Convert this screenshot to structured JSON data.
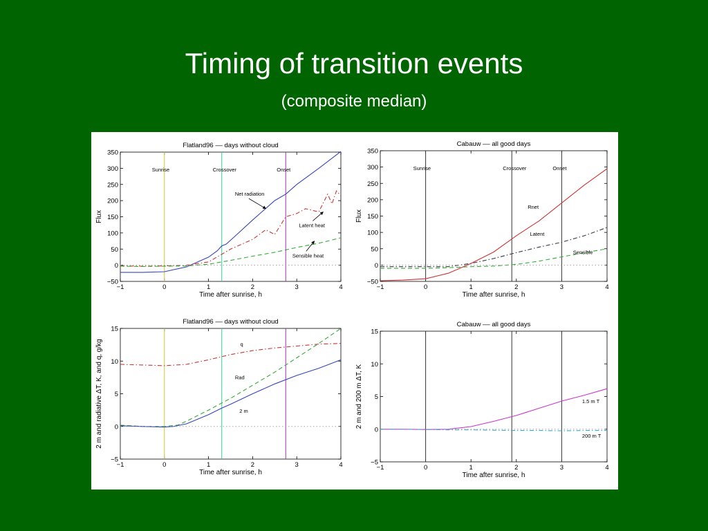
{
  "slide": {
    "title": "Timing of transition events",
    "subtitle": "(composite median)"
  },
  "chart_data": [
    {
      "type": "line",
      "title": "Flatland96 –– days without cloud",
      "xlabel": "Time after sunrise, h",
      "ylabel": "Flux",
      "xlim": [
        -1,
        4
      ],
      "ylim": [
        -50,
        350
      ],
      "xticks": [
        -1,
        0,
        1,
        2,
        3,
        4
      ],
      "yticks": [
        -50,
        0,
        50,
        100,
        150,
        200,
        250,
        300,
        350
      ],
      "grid": false,
      "events": [
        {
          "label": "Sunrise",
          "x": 0,
          "color": "#c8c832"
        },
        {
          "label": "Crossover",
          "x": 1.3,
          "color": "#33cc99"
        },
        {
          "label": "Onset",
          "x": 2.75,
          "color": "#9933aa"
        }
      ],
      "series": [
        {
          "name": "Net radiation",
          "color": "#3344bb",
          "dash": "solid",
          "x": [
            -1,
            -0.5,
            0,
            0.5,
            1,
            1.2,
            1.3,
            1.4,
            1.6,
            2,
            2.5,
            2.75,
            3,
            3.5,
            4
          ],
          "y": [
            -22,
            -22,
            -20,
            -5,
            25,
            45,
            60,
            65,
            90,
            140,
            200,
            220,
            250,
            300,
            352
          ]
        },
        {
          "name": "Latent heat",
          "color": "#cc3333",
          "dash": "dashdot",
          "x": [
            -1,
            -0.5,
            0,
            0.5,
            1,
            1.5,
            2,
            2.3,
            2.5,
            2.75,
            3,
            3.2,
            3.5,
            3.7,
            3.8,
            3.9,
            4
          ],
          "y": [
            -2,
            -3,
            -2,
            0,
            10,
            50,
            80,
            110,
            95,
            150,
            160,
            175,
            165,
            220,
            190,
            230,
            215
          ]
        },
        {
          "name": "Sensible heat",
          "color": "#33aa33",
          "dash": "dashed",
          "x": [
            -1,
            -0.5,
            0,
            0.5,
            1,
            1.5,
            2,
            2.5,
            3,
            3.5,
            4
          ],
          "y": [
            -3,
            -4,
            -3,
            -2,
            3,
            15,
            28,
            40,
            55,
            68,
            85
          ]
        },
        {
          "name": "",
          "color": "#999999",
          "dash": "dotted",
          "x": [
            -1,
            4
          ],
          "y": [
            0,
            0
          ]
        }
      ],
      "annotations": [
        {
          "text": "Net radiation",
          "x": 1.6,
          "y": 215,
          "arrow_to": [
            2.3,
            175
          ]
        },
        {
          "text": "Latent heat",
          "x": 3.05,
          "y": 118,
          "arrow_to": [
            3.6,
            165
          ]
        },
        {
          "text": "Sensible heat",
          "x": 2.9,
          "y": 24,
          "arrow_to": [
            3.4,
            75
          ]
        }
      ]
    },
    {
      "type": "line",
      "title": "Cabauw –– all good days",
      "xlabel": "Time after sunrise, h",
      "ylabel": "Flux",
      "xlim": [
        -1,
        4
      ],
      "ylim": [
        -50,
        350
      ],
      "xticks": [
        -1,
        0,
        1,
        2,
        3,
        4
      ],
      "yticks": [
        -50,
        0,
        50,
        100,
        150,
        200,
        250,
        300,
        350
      ],
      "grid": false,
      "events": [
        {
          "label": "Sunrise",
          "x": 0,
          "color": "#333333"
        },
        {
          "label": "Crossover",
          "x": 1.9,
          "color": "#333333"
        },
        {
          "label": "Onset",
          "x": 3,
          "color": "#333333"
        }
      ],
      "series": [
        {
          "name": "Rnet",
          "color": "#cc3333",
          "dash": "solid",
          "x": [
            -1,
            -0.5,
            0,
            0.5,
            1,
            1.5,
            2,
            2.5,
            3,
            3.5,
            4
          ],
          "y": [
            -48,
            -46,
            -42,
            -25,
            5,
            40,
            90,
            135,
            190,
            245,
            295
          ]
        },
        {
          "name": "Latent",
          "color": "#333344",
          "dash": "dashdot",
          "x": [
            -1,
            0,
            0.5,
            1,
            1.5,
            2,
            2.5,
            3,
            3.5,
            4
          ],
          "y": [
            -5,
            -5,
            -5,
            5,
            20,
            38,
            55,
            70,
            90,
            115
          ]
        },
        {
          "name": "Sensible",
          "color": "#33aa33",
          "dash": "dashed",
          "x": [
            -1,
            0,
            0.5,
            1,
            1.5,
            2,
            2.5,
            3,
            3.5,
            4
          ],
          "y": [
            -10,
            -10,
            -8,
            -5,
            -3,
            2,
            12,
            25,
            38,
            50
          ]
        },
        {
          "name": "",
          "color": "#999999",
          "dash": "dotted",
          "x": [
            -1,
            4
          ],
          "y": [
            0,
            0
          ]
        }
      ],
      "annotations": [
        {
          "text": "Rnet",
          "x": 2.25,
          "y": 172,
          "arrow_to": null
        },
        {
          "text": "Latent",
          "x": 2.3,
          "y": 90,
          "arrow_to": null
        },
        {
          "text": "Sensible",
          "x": 3.25,
          "y": 34,
          "arrow_to": null
        }
      ]
    },
    {
      "type": "line",
      "title": "Flatland96 –– days without cloud",
      "xlabel": "Time after sunrise, h",
      "ylabel": "2 m and radiative ΔT, K, and q, g/kg",
      "xlim": [
        -1,
        4
      ],
      "ylim": [
        -5,
        15
      ],
      "xticks": [
        -1,
        0,
        1,
        2,
        3,
        4
      ],
      "yticks": [
        -5,
        0,
        5,
        10,
        15
      ],
      "grid": false,
      "events": [
        {
          "label": "",
          "x": 0,
          "color": "#c8c832"
        },
        {
          "label": "",
          "x": 1.3,
          "color": "#33cc99"
        },
        {
          "label": "",
          "x": 2.75,
          "color": "#9933aa"
        }
      ],
      "series": [
        {
          "name": "q",
          "color": "#cc3333",
          "dash": "dashdot",
          "x": [
            -1,
            -0.5,
            0,
            0.5,
            1,
            1.5,
            2,
            2.5,
            3,
            3.5,
            4
          ],
          "y": [
            9.5,
            9.4,
            9.3,
            9.5,
            10.2,
            11,
            11.6,
            12,
            12.3,
            12.6,
            12.7
          ]
        },
        {
          "name": "Rad",
          "color": "#33aa33",
          "dash": "dashed",
          "x": [
            -1,
            -0.5,
            0,
            0.3,
            0.5,
            1,
            1.5,
            2,
            2.5,
            3,
            3.5,
            4
          ],
          "y": [
            0.2,
            0,
            0,
            0.2,
            0.8,
            2.5,
            4.3,
            6.3,
            8.3,
            10.5,
            12.7,
            15
          ]
        },
        {
          "name": "2 m",
          "color": "#3344bb",
          "dash": "solid",
          "x": [
            -1,
            -0.5,
            0,
            0.2,
            0.5,
            1,
            1.3,
            1.5,
            2,
            2.5,
            3,
            3.5,
            4
          ],
          "y": [
            0.1,
            0,
            -0.1,
            0,
            0.4,
            1.8,
            2.8,
            3.4,
            5,
            6.5,
            7.8,
            8.9,
            10.2
          ]
        },
        {
          "name": "",
          "color": "#999999",
          "dash": "dotted",
          "x": [
            -1,
            4
          ],
          "y": [
            0,
            0
          ]
        }
      ],
      "annotations": [
        {
          "text": "q",
          "x": 1.72,
          "y": 12.3,
          "arrow_to": null
        },
        {
          "text": "Rad",
          "x": 1.6,
          "y": 7.2,
          "arrow_to": null
        },
        {
          "text": "2 m",
          "x": 1.7,
          "y": 2.1,
          "arrow_to": null
        }
      ]
    },
    {
      "type": "line",
      "title": "Cabauw –– all good days",
      "xlabel": "Time after sunrise, h",
      "ylabel": "2 m and 200 m ΔT, K",
      "xlim": [
        -1,
        4
      ],
      "ylim": [
        -5,
        15
      ],
      "xticks": [
        -1,
        0,
        1,
        2,
        3,
        4
      ],
      "yticks": [
        -5,
        0,
        5,
        10,
        15
      ],
      "grid": false,
      "events": [
        {
          "label": "",
          "x": 0,
          "color": "#333333"
        },
        {
          "label": "",
          "x": 1.9,
          "color": "#333333"
        },
        {
          "label": "",
          "x": 3,
          "color": "#333333"
        }
      ],
      "series": [
        {
          "name": "1.5 m T",
          "color": "#cc33cc",
          "dash": "solid",
          "x": [
            -1,
            -0.5,
            0,
            0.5,
            1,
            1.5,
            2,
            2.5,
            3,
            3.5,
            4
          ],
          "y": [
            0,
            0,
            -0.05,
            0,
            0.4,
            1.2,
            2.1,
            3.2,
            4.3,
            5.2,
            6.2
          ]
        },
        {
          "name": "200 m T",
          "color": "#33aacc",
          "dash": "dashdot",
          "x": [
            -1,
            -0.5,
            0,
            0.5,
            1,
            1.5,
            2,
            2.5,
            3,
            3.5,
            4
          ],
          "y": [
            0,
            0,
            -0.05,
            -0.1,
            -0.1,
            -0.15,
            -0.2,
            -0.2,
            -0.25,
            -0.2,
            -0.2
          ]
        },
        {
          "name": "",
          "color": "#999999",
          "dash": "dotted",
          "x": [
            -1,
            4
          ],
          "y": [
            0,
            0
          ]
        }
      ],
      "annotations": [
        {
          "text": "1.5 m T",
          "x": 3.45,
          "y": 4.0,
          "arrow_to": null
        },
        {
          "text": "200 m T",
          "x": 3.45,
          "y": -1.3,
          "arrow_to": null
        }
      ]
    }
  ]
}
